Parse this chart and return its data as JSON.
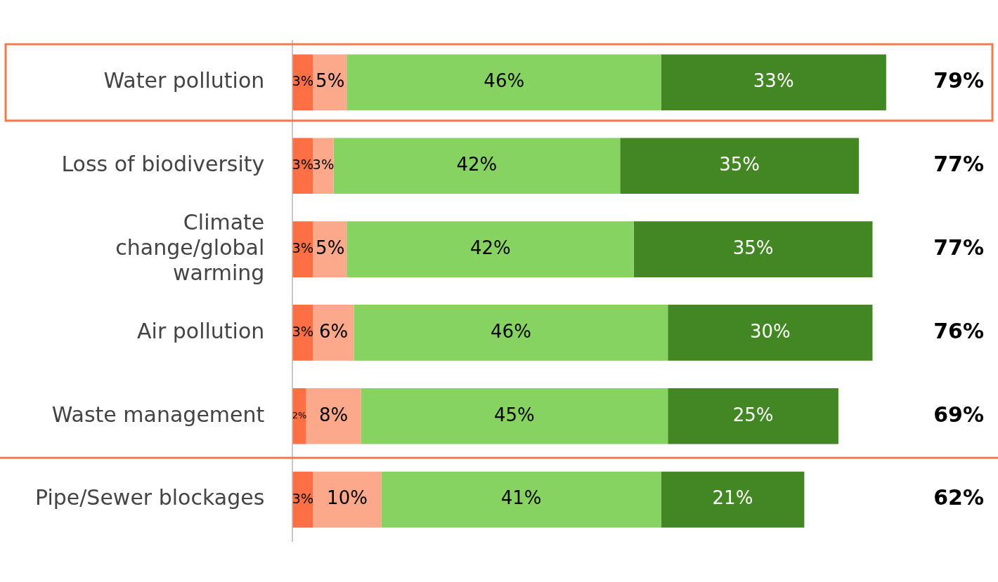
{
  "chart_data": {
    "type": "bar",
    "orientation": "horizontal",
    "stacked": true,
    "tick_labels": "y",
    "grid": false,
    "legend": false,
    "categories": [
      "Water pollution",
      "Loss of biodiversity",
      "Climate\nchange/global\nwarming",
      "Air pollution",
      "Waste management",
      "Pipe/Sewer blockages"
    ],
    "series": [
      {
        "color": "#fd6f45",
        "values": [
          3,
          3,
          3,
          3,
          2,
          3
        ],
        "value_labels": [
          "3%",
          "3%",
          "3%",
          "3%",
          "2%",
          "3%"
        ]
      },
      {
        "color": "#fca88a",
        "values": [
          5,
          3,
          5,
          6,
          8,
          10
        ],
        "value_labels": [
          "5%",
          "3%",
          "5%",
          "6%",
          "8%",
          "10%"
        ]
      },
      {
        "color": "#86d361",
        "values": [
          46,
          42,
          42,
          46,
          45,
          41
        ],
        "value_labels": [
          "46%",
          "42%",
          "42%",
          "46%",
          "45%",
          "41%"
        ]
      },
      {
        "color": "#438624",
        "values": [
          33,
          35,
          35,
          30,
          25,
          21
        ],
        "value_labels": [
          "33%",
          "35%",
          "35%",
          "30%",
          "25%",
          "21%"
        ]
      }
    ],
    "annotations": [
      "79%",
      "77%",
      "77%",
      "76%",
      "69%",
      "62%"
    ]
  }
}
